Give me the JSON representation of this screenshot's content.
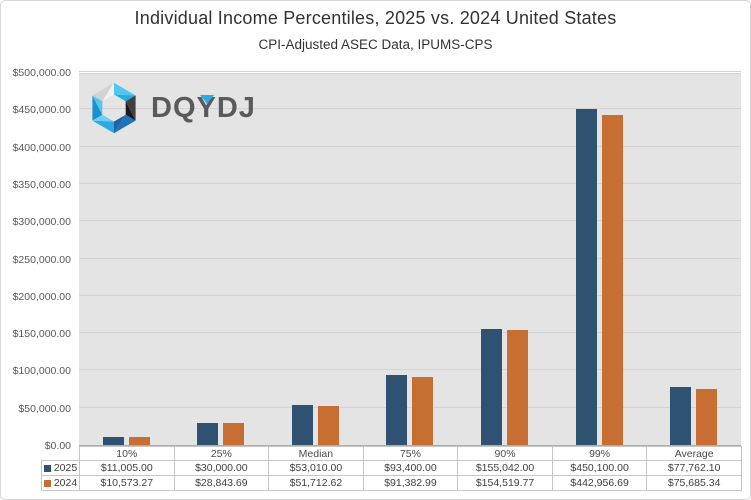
{
  "logo": {
    "text_left": "DQ",
    "text_y": "Y",
    "text_right": "DJ",
    "accent_color": "#29ABE2"
  },
  "chart_data": {
    "type": "bar",
    "title": "Individual Income Percentiles, 2025 vs. 2024 United States",
    "subtitle": "CPI-Adjusted ASEC Data, IPUMS-CPS",
    "categories": [
      "10%",
      "25%",
      "Median",
      "75%",
      "90%",
      "99%",
      "Average"
    ],
    "series": [
      {
        "name": "2025",
        "color": "#2F5273",
        "values": [
          11005.0,
          30000.0,
          53010.0,
          93400.0,
          155042.0,
          450100.0,
          77762.1
        ],
        "display_values": [
          "$11,005.00",
          "$30,000.00",
          "$53,010.00",
          "$93,400.00",
          "$155,042.00",
          "$450,100.00",
          "$77,762.10"
        ]
      },
      {
        "name": "2024",
        "color": "#C76F33",
        "values": [
          10573.27,
          28843.69,
          51712.62,
          91382.99,
          154519.77,
          442956.69,
          75685.34
        ],
        "display_values": [
          "$10,573.27",
          "$28,843.69",
          "$51,712.62",
          "$91,382.99",
          "$154,519.77",
          "$442,956.69",
          "$75,685.34"
        ]
      }
    ],
    "ylim": [
      0,
      500000
    ],
    "ytick_step": 50000,
    "ytick_labels": [
      "$0.00",
      "$50,000.00",
      "$100,000.00",
      "$150,000.00",
      "$200,000.00",
      "$250,000.00",
      "$300,000.00",
      "$350,000.00",
      "$400,000.00",
      "$450,000.00",
      "$500,000.00"
    ],
    "grid": true,
    "legend_position": "data-table-left",
    "plot_bg": "#E4E4E4",
    "gridline_color": "#D3D3D3"
  }
}
